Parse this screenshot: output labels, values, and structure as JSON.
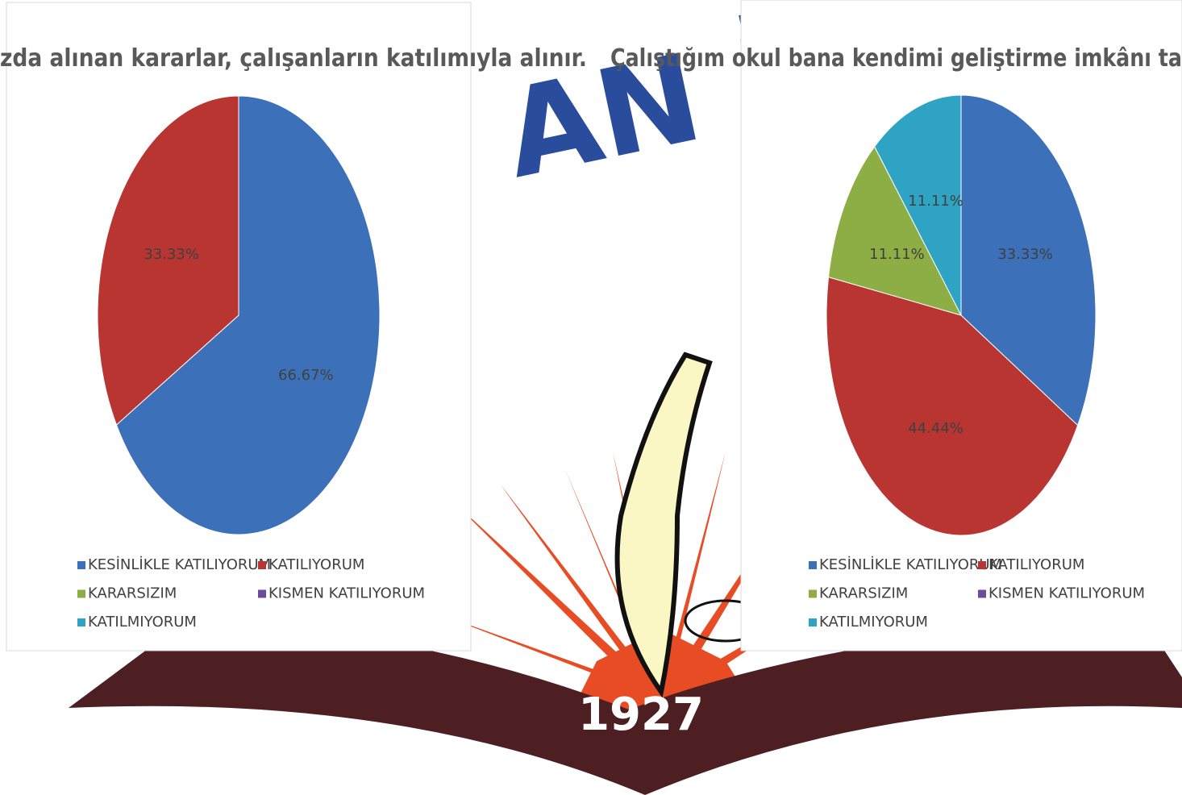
{
  "logo": {
    "banner": "AN İ",
    "year": "1927"
  },
  "chart_data": [
    {
      "type": "pie",
      "title": "zda alınan kararlar, çalışanların katılımıyla alınır.",
      "categories": [
        "KESİNLİKLE KATILIYORUM",
        "KATILIYORUM",
        "KARARSIZIM",
        "KISMEN KATILIYORUM",
        "KATILMIYORUM"
      ],
      "values": [
        66.67,
        33.33,
        0,
        0,
        0
      ],
      "value_labels": [
        "66.67%",
        "33.33%",
        null,
        null,
        null
      ],
      "colors": [
        "#3c70b8",
        "#b83532",
        "#8cae44",
        "#6b4c9a",
        "#2fa3c4"
      ]
    },
    {
      "type": "pie",
      "title": "Çalıştığım okul bana kendimi geliştirme imkânı ta",
      "categories": [
        "KESİNLİKLE KATILIYORUM",
        "KATILIYORUM",
        "KARARSIZIM",
        "KISMEN KATILIYORUM",
        "KATILMIYORUM"
      ],
      "values": [
        33.33,
        44.44,
        11.11,
        0,
        11.11
      ],
      "value_labels": [
        "33.33%",
        "44.44%",
        "11.11%",
        null,
        "11.11%"
      ],
      "colors": [
        "#3c70b8",
        "#b83532",
        "#8cae44",
        "#6b4c9a",
        "#2fa3c4"
      ]
    }
  ]
}
